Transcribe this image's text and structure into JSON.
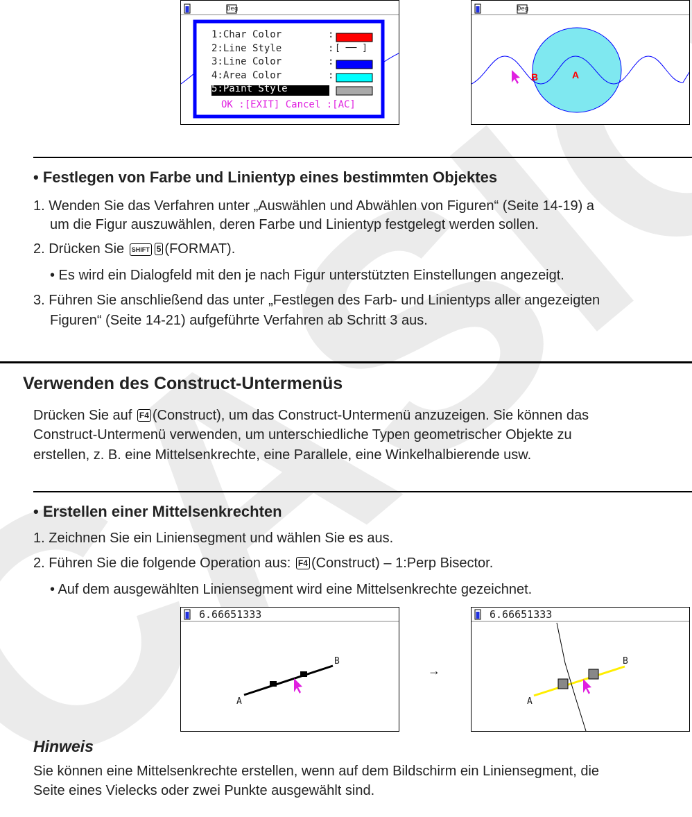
{
  "watermark": "CASIO",
  "screen1": {
    "header": "Deg",
    "items": [
      {
        "label": "1:Char Color",
        "value_color": "#ff0000"
      },
      {
        "label": "2:Line Style",
        "value_text": "[ ── ]"
      },
      {
        "label": "3:Line Color",
        "value_color": "#0000ff"
      },
      {
        "label": "4:Area Color",
        "value_color": "#00ffff"
      },
      {
        "label": "5:Paint Style",
        "value_pattern": "dotted"
      }
    ],
    "footer": "OK :[EXIT]  Cancel :[AC]"
  },
  "screen2": {
    "header": "Deg",
    "point_a": "A",
    "point_b": "B"
  },
  "section1": {
    "heading": "• Festlegen von Farbe und Linientyp eines bestimmten Objektes",
    "step1a": "1. Wenden Sie das Verfahren unter „Auswählen und Abwählen von Figuren“ (Seite 14-19) a",
    "step1b": "um die Figur auszuwählen, deren Farbe und Linientyp festgelegt werden sollen.",
    "step2_pre": "2. Drücken Sie",
    "key_shift": "SHIFT",
    "key_5": "5",
    "step2_post": "(FORMAT).",
    "bullet": "• Es wird ein Dialogfeld mit den je nach Figur unterstützten Einstellungen angezeigt.",
    "step3a": "3. Führen Sie anschließend das unter „Festlegen des Farb- und Linientyps aller angezeigten",
    "step3b": "Figuren“ (Seite 14-21) aufgeführte Verfahren ab Schritt 3 aus."
  },
  "section2": {
    "title": "Verwenden des Construct-Untermenüs",
    "p1_pre": "Drücken Sie auf",
    "key_f4": "F4",
    "p1_post": "(Construct), um das Construct-Untermenü anzuzeigen. Sie können das",
    "p2": "Construct-Untermenü verwenden, um unterschiedliche Typen geometrischer Objekte zu",
    "p3": "erstellen, z. B. eine Mittelsenkrechte, eine Parallele, eine Winkelhalbierende usw."
  },
  "section3": {
    "heading": "• Erstellen einer Mittelsenkrechten",
    "step1": "1. Zeichnen Sie ein Liniensegment und wählen Sie es aus.",
    "step2_pre": "2. Führen Sie die folgende Operation aus:",
    "key_f4": "F4",
    "step2_post": "(Construct) – 1:Perp Bisector.",
    "bullet": "• Auf dem ausgewählten Liniensegment wird eine Mittelsenkrechte gezeichnet."
  },
  "screen3": {
    "header": "6.66651333",
    "point_a": "A",
    "point_b": "B"
  },
  "arrow": "→",
  "screen4": {
    "header": "6.66651333",
    "point_a": "A",
    "point_b": "B"
  },
  "note": {
    "title": "Hinweis",
    "line1": "Sie können eine Mittelsenkrechte erstellen, wenn auf dem Bildschirm ein Liniensegment, die",
    "line2": "Seite eines Vielecks oder zwei Punkte ausgewählt sind."
  }
}
